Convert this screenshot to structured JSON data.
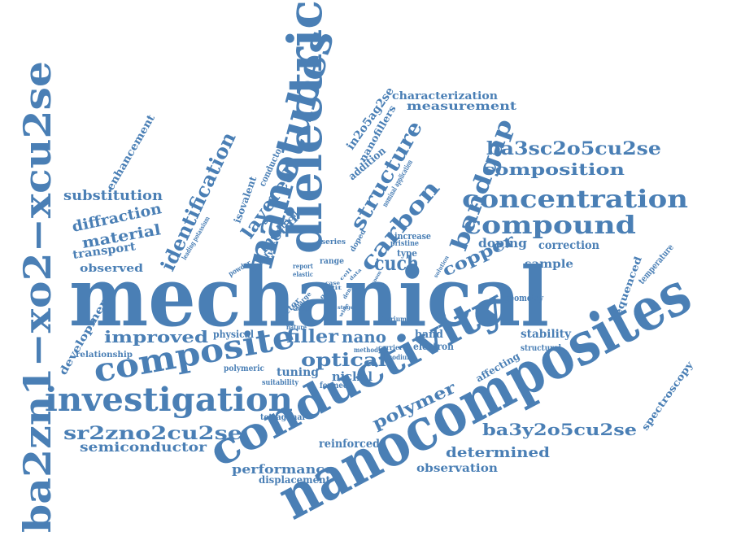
{
  "colors": {
    "word": "#4a7fb5",
    "background": "#ffffff"
  },
  "words": [
    "mechanical",
    "nanocomposites",
    "conductivity",
    "dielectric",
    "nanotubes",
    "ba2zn1−xo2−xcu2se",
    "investigation",
    "composite",
    "concentration",
    "compound",
    "bandgap",
    "carbon",
    "structure",
    "identification",
    "ba3sc2o5cu2se",
    "composition",
    "sr2zno2cu2se",
    "ba3y2o5cu2se",
    "polymer",
    "layered",
    "optical",
    "nanofillers",
    "in2o5ag2se",
    "copper",
    "substitution",
    "diffraction",
    "material",
    "improved",
    "semiconductor",
    "performance",
    "reinforced",
    "determined",
    "observation",
    "metal",
    "cuch",
    "filler",
    "nano",
    "measurement",
    "characterization",
    "enhancement",
    "transport",
    "observed",
    "correction",
    "doping",
    "sample",
    "development",
    "tuning",
    "nickel",
    "displacement",
    "stability",
    "band",
    "electron",
    "spectroscopy",
    "sequenced",
    "temperature",
    "geometry",
    "structural",
    "affecting",
    "isovalent",
    "conductor",
    "electrical",
    "physical",
    "relationship",
    "polymeric",
    "tetragonal",
    "formed",
    "suitability",
    "addition",
    "nominal application",
    "increase",
    "type",
    "pristine",
    "doped",
    "series",
    "range",
    "study",
    "report",
    "elastic",
    "powder",
    "leading potassium",
    "charge",
    "factor",
    "adopt",
    "nature",
    "barium",
    "carrier",
    "method",
    "sodium",
    "solution",
    "room",
    "case",
    "slit",
    "cell",
    "data",
    "good",
    "dense",
    "stage",
    "wide"
  ]
}
